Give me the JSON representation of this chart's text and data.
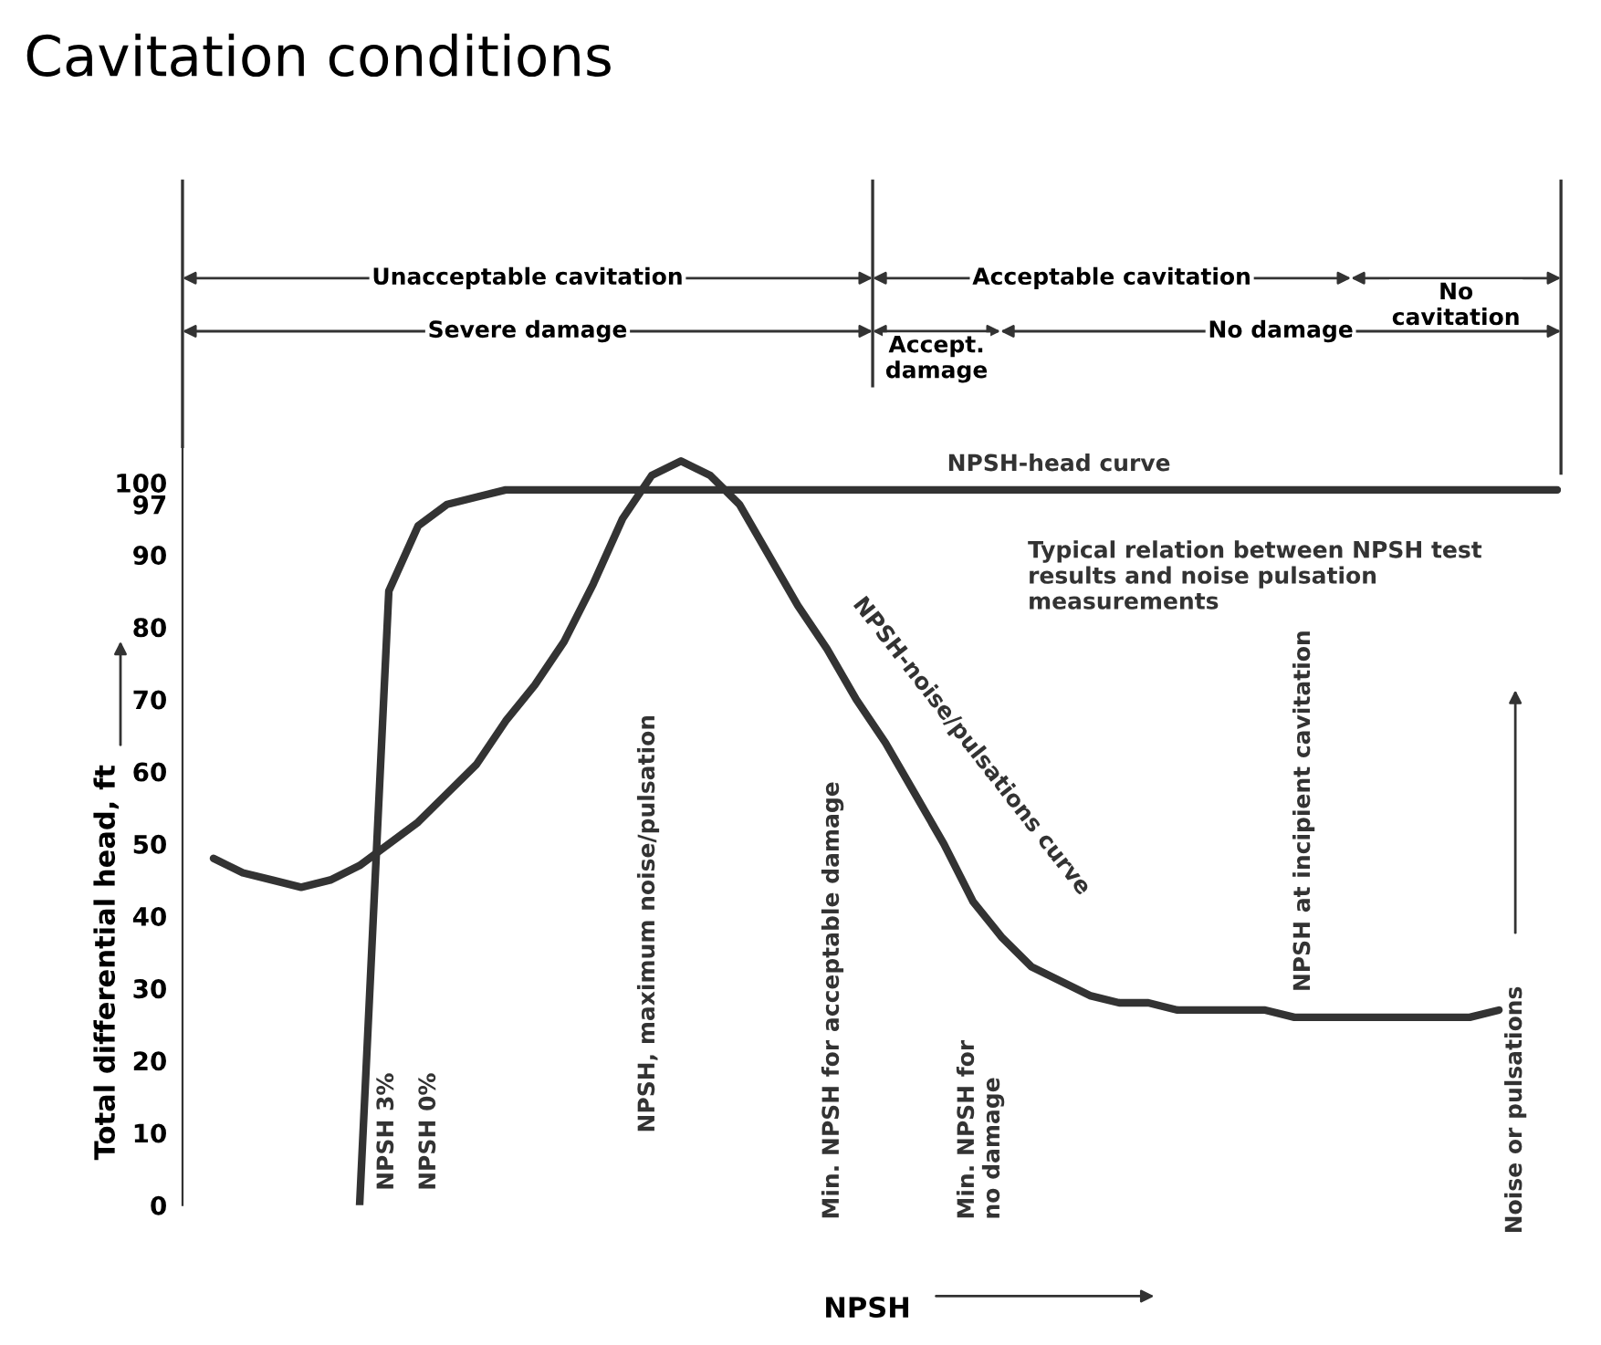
{
  "chart_data": {
    "type": "line",
    "title": "Cavitation conditions",
    "xlabel": "NPSH",
    "ylabel": "Total differential head, ft",
    "categories": [
      null,
      null,
      null,
      null,
      null,
      null,
      null,
      null,
      null,
      null,
      null,
      null,
      null,
      null,
      null,
      null,
      null,
      null,
      null,
      null,
      null,
      null,
      null,
      null,
      null,
      null,
      null,
      null,
      null,
      null,
      null,
      null,
      null,
      null,
      null,
      null,
      null,
      null,
      null,
      null,
      null,
      null,
      null,
      null,
      null,
      null,
      null
    ],
    "series": [
      {
        "name": "NPSH-head curve",
        "color": "#333333",
        "values": [
          null,
          null,
          null,
          null,
          null,
          0,
          85,
          94,
          97,
          98,
          99,
          99,
          99,
          99,
          99,
          99,
          99,
          99,
          99,
          99,
          99,
          99,
          99,
          99,
          99,
          99,
          99,
          99,
          99,
          99,
          99,
          99,
          99,
          99,
          99,
          99,
          99,
          99,
          99,
          99,
          99,
          99,
          99,
          99,
          99,
          99,
          99
        ]
      },
      {
        "name": "NPSH-noise/pulsations curve",
        "color": "#333333",
        "values": [
          48,
          46,
          45,
          44,
          45,
          47,
          50,
          53,
          57,
          61,
          67,
          72,
          78,
          86,
          95,
          101,
          103,
          101,
          97,
          90,
          83,
          77,
          70,
          64,
          57,
          50,
          42,
          37,
          33,
          31,
          29,
          28,
          28,
          27,
          27,
          27,
          27,
          26,
          26,
          26,
          26,
          26,
          26,
          26,
          27,
          null,
          null
        ]
      }
    ],
    "ylim": [
      0,
      105
    ],
    "yticks": [
      0,
      10,
      20,
      30,
      40,
      50,
      60,
      70,
      80,
      90,
      97,
      100
    ],
    "grid": false,
    "tick_labels": "y",
    "marker": "none",
    "line_style": "solid",
    "annotations": [
      "Unacceptable cavitation",
      "Acceptable cavitation",
      "No\ncavitation",
      "Severe damage",
      "Accept.\ndamage",
      "No damage",
      "Typical relation between NPSH test\nresults and noise pulsation\nmeasurements",
      "NPSH 3%",
      "NPSH 0%",
      "NPSH, maximum noise/pulsation",
      "Min. NPSH for acceptable damage",
      "Min. NPSH for\nno damage",
      "NPSH at incipient cavitation",
      "Noise or pulsations"
    ]
  }
}
